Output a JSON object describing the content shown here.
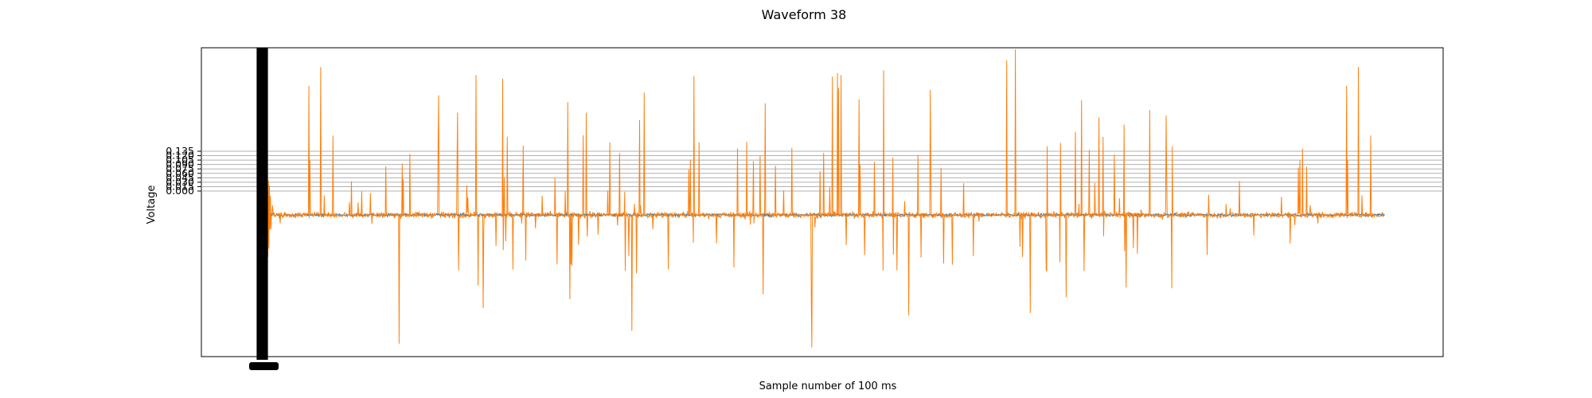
{
  "chart_data": {
    "type": "line",
    "title": "Waveform 38",
    "xlabel": "Sample number of 100 ms",
    "ylabel": "Voltage",
    "grid": true,
    "legend": "none",
    "ylim": [
      -0.4,
      0.5
    ],
    "y_ticks": [
      "0.000",
      "0.015",
      "0.030",
      "0.045",
      "0.060",
      "0.075",
      "0.090",
      "0.105",
      "0.120",
      "0.135"
    ],
    "x_tick_labels_overlapping": true,
    "series": [
      {
        "color": "#1f77b4",
        "baseline": 0.0,
        "noise_amplitude": 0.006,
        "note_samples_approx": 2200
      },
      {
        "color": "#ff7f0e",
        "baseline": 0.0,
        "noise_amplitude": 0.012,
        "sample_count_approx": 2200,
        "peak_positive_approx": 0.45,
        "peak_negative_approx": -0.36,
        "initial_transient_min_approx": -0.26,
        "initial_transient_max_approx": 0.36
      }
    ]
  }
}
